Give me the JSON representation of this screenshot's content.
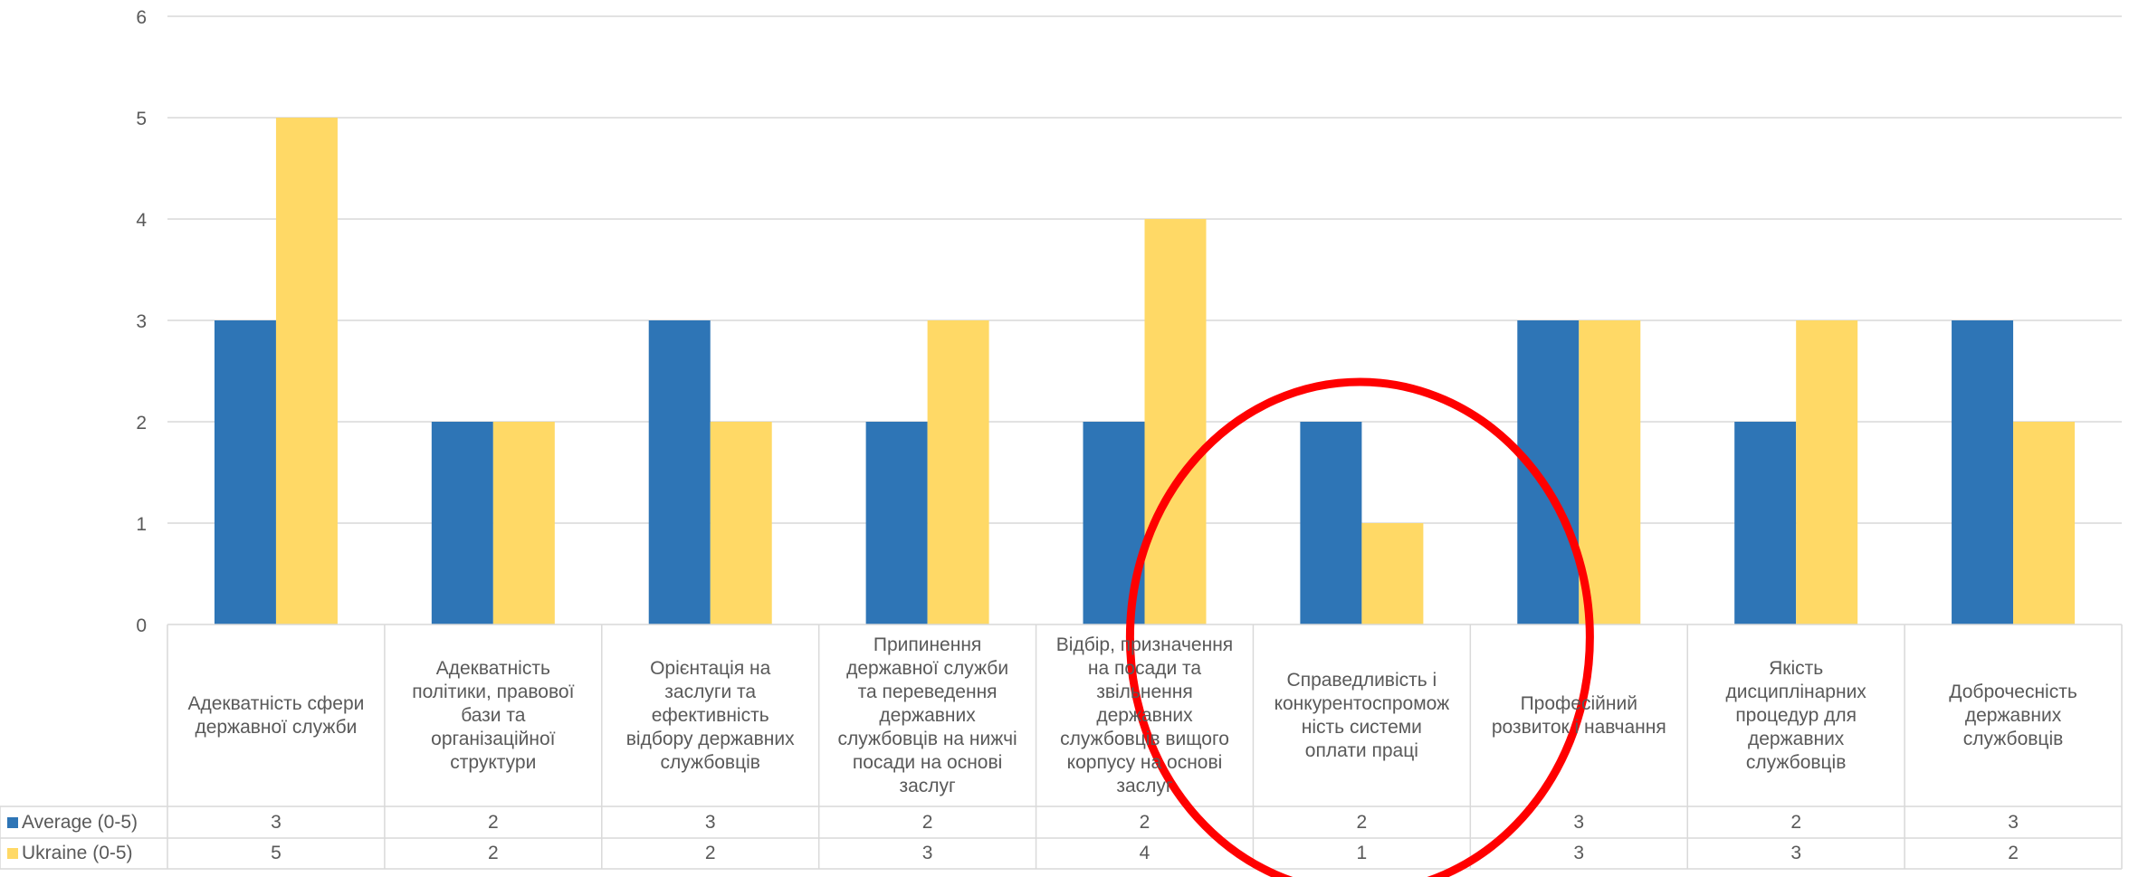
{
  "chart_data": {
    "type": "bar",
    "categories": [
      "Адекватність сфери державної служби",
      "Адекватність політики, правової бази та організаційної структури",
      "Орієнтація на заслуги та ефективність відбору державних службовців",
      "Припинення державної служби та переведення державних службовців на нижчі посади на основі заслуг",
      "Відбір, призначення на посади та звільнення державних службовців вищого корпусу на основі заслуг",
      "Справедливість і конкурентоспроможність системи оплати праці",
      "Професійний розвиток і навчання",
      "Якість дисциплінарних процедур для державних службовців",
      "Доброчесність державних службовців"
    ],
    "category_display": [
      "Адекватність сфери\nдержавної служби",
      "Адекватність\nполітики, правової\nбази та\nорганізаційної\nструктури",
      "Орієнтація на\nзаслуги та\nефективність\nвідбору державних\nслужбовців",
      "Припинення\nдержавної служби\nта переведення\nдержавних\nслужбовців на нижчі\nпосади на основі\nзаслуг",
      "Відбір, призначення\nна посади та\nзвільнення\nдержавних\nслужбовців вищого\nкорпусу на основі\nзаслуг",
      "Справедливість і\nконкурентоспромож\nність системи\nоплати праці",
      "Професійний\nрозвиток і навчання",
      "Якість\nдисциплінарних\nпроцедур для\nдержавних\nслужбовців",
      "Доброчесність\nдержавних\nслужбовців"
    ],
    "series": [
      {
        "name": "Average (0-5)",
        "values": [
          3,
          2,
          3,
          2,
          2,
          2,
          3,
          2,
          3
        ],
        "color": "#2E75B6"
      },
      {
        "name": "Ukraine (0-5)",
        "values": [
          5,
          2,
          2,
          3,
          4,
          1,
          3,
          3,
          2
        ],
        "color": "#FFD966"
      }
    ],
    "ylim": [
      0,
      6
    ],
    "yticks": [
      0,
      1,
      2,
      3,
      4,
      5,
      6
    ],
    "grid": true,
    "legend": "data-table",
    "annotation": {
      "shape": "ellipse",
      "color": "#FF0000",
      "highlights_category": 5
    }
  }
}
